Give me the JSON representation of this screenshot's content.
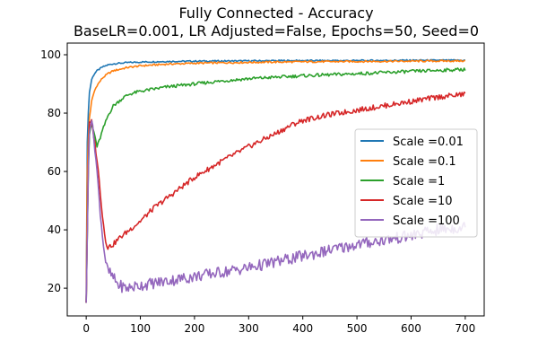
{
  "chart_data": {
    "type": "line",
    "title": "Fully Connected - Accuracy",
    "subtitle": "BaseLR=0.001, LR Adjusted=False, Epochs=50, Seed=0",
    "xlabel": "",
    "ylabel": "",
    "xlim": [
      -35,
      735
    ],
    "ylim": [
      10.5,
      104
    ],
    "xticks": [
      0,
      100,
      200,
      300,
      400,
      500,
      600,
      700
    ],
    "yticks": [
      20,
      40,
      60,
      80,
      100
    ],
    "grid": false,
    "legend_position": "center-right",
    "series": [
      {
        "name": "Scale =0.01",
        "color": "#1f77b4",
        "x": [
          0,
          2,
          5,
          10,
          15,
          20,
          30,
          40,
          50,
          75,
          100,
          150,
          200,
          300,
          400,
          500,
          600,
          700
        ],
        "y": [
          15,
          70,
          86,
          91.5,
          93.5,
          94.5,
          95.8,
          96.5,
          96.9,
          97.3,
          97.5,
          97.7,
          97.8,
          97.9,
          98,
          98,
          98.1,
          98.1
        ]
      },
      {
        "name": "Scale =0.1",
        "color": "#ff7f0e",
        "x": [
          0,
          2,
          5,
          10,
          15,
          20,
          30,
          40,
          50,
          75,
          100,
          150,
          200,
          300,
          400,
          500,
          600,
          700
        ],
        "y": [
          15,
          60,
          77,
          84,
          87.5,
          89.5,
          92,
          93.5,
          94.5,
          95.6,
          96.2,
          96.8,
          97.1,
          97.4,
          97.6,
          97.7,
          97.8,
          97.9
        ]
      },
      {
        "name": "Scale =1",
        "color": "#2ca02c",
        "x": [
          0,
          5,
          10,
          15,
          20,
          25,
          30,
          40,
          50,
          60,
          70,
          80,
          100,
          150,
          200,
          250,
          300,
          400,
          500,
          600,
          700
        ],
        "y": [
          15,
          72,
          76,
          73,
          68.5,
          71,
          74,
          79,
          82.5,
          84,
          85.5,
          86.5,
          87.5,
          89,
          90,
          91,
          91.8,
          92.8,
          93.5,
          94.3,
          95
        ]
      },
      {
        "name": "Scale =10",
        "color": "#d62728",
        "x": [
          0,
          5,
          10,
          15,
          20,
          25,
          30,
          35,
          40,
          50,
          60,
          80,
          100,
          125,
          150,
          175,
          200,
          250,
          300,
          350,
          380,
          400,
          450,
          500,
          550,
          600,
          650,
          700
        ],
        "y": [
          15,
          76,
          77,
          71,
          64,
          55,
          45,
          37,
          34,
          35,
          37,
          40,
          43,
          47.5,
          51,
          54.5,
          58,
          63.5,
          68.5,
          73,
          76,
          77.5,
          79.5,
          81,
          82.5,
          84,
          85.5,
          86.5
        ]
      },
      {
        "name": "Scale =100",
        "color": "#9467bd",
        "x": [
          0,
          5,
          10,
          15,
          20,
          25,
          30,
          35,
          40,
          50,
          60,
          75,
          100,
          150,
          200,
          250,
          300,
          350,
          400,
          450,
          500,
          550,
          600,
          650,
          700
        ],
        "y": [
          15,
          74,
          78,
          70,
          60,
          48,
          38,
          30,
          26,
          23.5,
          21,
          20,
          21,
          22.5,
          24,
          25.5,
          27,
          29,
          31,
          33,
          35,
          36.5,
          38,
          40,
          41
        ]
      }
    ]
  }
}
